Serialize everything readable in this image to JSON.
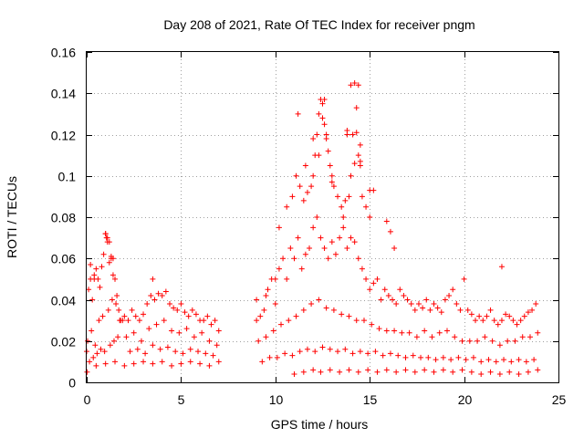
{
  "chart_data": {
    "type": "scatter",
    "title": "Day 208 of 2021, Rate Of TEC Index for receiver pngm",
    "xlabel": "GPS time / hours",
    "ylabel": "ROTI / TECUs",
    "xlim": [
      0,
      25
    ],
    "ylim": [
      0,
      0.16
    ],
    "grid": true,
    "marker": "+",
    "color": "#ff0000",
    "xticks": [
      {
        "value": 0,
        "label": "0"
      },
      {
        "value": 5,
        "label": "5"
      },
      {
        "value": 10,
        "label": "10"
      },
      {
        "value": 15,
        "label": "15"
      },
      {
        "value": 20,
        "label": "20"
      },
      {
        "value": 25,
        "label": "25"
      }
    ],
    "yticks": [
      {
        "value": 0,
        "label": "0"
      },
      {
        "value": 0.02,
        "label": "0.02"
      },
      {
        "value": 0.04,
        "label": "0.04"
      },
      {
        "value": 0.06,
        "label": "0.06"
      },
      {
        "value": 0.08,
        "label": "0.08"
      },
      {
        "value": 0.1,
        "label": "0.1"
      },
      {
        "value": 0.12,
        "label": "0.12"
      },
      {
        "value": 0.14,
        "label": "0.14"
      },
      {
        "value": 0.16,
        "label": "0.16"
      }
    ],
    "series": [
      {
        "name": "ROTI",
        "x": [
          0.0,
          0.1,
          0.2,
          0.3,
          0.4,
          0.5,
          0.6,
          0.7,
          0.8,
          0.9,
          1.0,
          1.05,
          1.1,
          1.2,
          1.3,
          1.4,
          1.5,
          1.6,
          1.7,
          1.8,
          1.9,
          2.0,
          2.2,
          2.4,
          2.6,
          2.8,
          3.0,
          3.2,
          3.4,
          3.6,
          3.8,
          4.0,
          4.2,
          4.4,
          4.6,
          4.8,
          5.0,
          5.2,
          5.4,
          5.6,
          5.8,
          6.0,
          6.2,
          6.4,
          6.6,
          6.8,
          7.0,
          0.05,
          0.25,
          0.45,
          0.65,
          0.85,
          1.15,
          1.35,
          1.55,
          1.75,
          2.1,
          2.5,
          2.9,
          3.3,
          3.7,
          4.1,
          4.5,
          4.9,
          5.3,
          5.7,
          6.1,
          6.5,
          6.9,
          0.15,
          0.35,
          0.55,
          0.75,
          0.95,
          1.25,
          1.45,
          1.65,
          2.3,
          2.7,
          3.1,
          3.5,
          3.9,
          4.3,
          4.7,
          5.1,
          5.5,
          5.9,
          6.3,
          6.7,
          0.02,
          0.5,
          1.0,
          1.5,
          2.0,
          2.5,
          3.0,
          3.5,
          4.0,
          4.5,
          5.0,
          5.5,
          6.0,
          6.5,
          7.0,
          1.0,
          1.1,
          1.2,
          0.4,
          1.4,
          3.5,
          1.3,
          0.2,
          9.0,
          9.2,
          9.4,
          9.6,
          9.8,
          10.0,
          10.2,
          10.4,
          10.6,
          10.8,
          11.0,
          11.2,
          11.4,
          11.6,
          11.8,
          12.0,
          12.2,
          12.4,
          12.6,
          12.8,
          13.0,
          13.2,
          13.4,
          13.6,
          13.8,
          14.0,
          14.2,
          14.4,
          14.6,
          14.8,
          15.0,
          15.2,
          15.4,
          15.6,
          15.8,
          16.0,
          16.2,
          16.4,
          16.6,
          16.8,
          17.0,
          17.2,
          17.4,
          17.6,
          17.8,
          18.0,
          18.2,
          18.4,
          18.6,
          18.8,
          19.0,
          19.2,
          19.4,
          19.6,
          19.8,
          20.0,
          20.2,
          20.4,
          20.6,
          20.8,
          21.0,
          21.2,
          21.4,
          21.6,
          21.8,
          22.0,
          22.2,
          22.4,
          22.6,
          22.8,
          23.0,
          23.2,
          23.4,
          23.6,
          23.8,
          9.1,
          9.5,
          9.9,
          10.3,
          10.7,
          11.1,
          11.5,
          11.9,
          12.3,
          12.7,
          13.1,
          13.5,
          13.9,
          14.3,
          14.7,
          15.1,
          15.5,
          15.9,
          16.3,
          16.7,
          17.1,
          17.5,
          17.9,
          18.3,
          18.7,
          19.1,
          19.5,
          19.9,
          20.3,
          20.7,
          21.1,
          21.5,
          21.9,
          22.3,
          22.7,
          23.1,
          23.5,
          23.9,
          9.3,
          9.7,
          10.1,
          10.5,
          10.9,
          11.3,
          11.7,
          12.1,
          12.5,
          12.9,
          13.3,
          13.7,
          14.1,
          14.5,
          14.9,
          15.3,
          15.7,
          16.1,
          16.5,
          16.9,
          17.3,
          17.7,
          18.1,
          18.5,
          18.9,
          19.3,
          19.7,
          20.1,
          20.5,
          20.9,
          21.3,
          21.7,
          22.1,
          22.5,
          22.9,
          23.3,
          23.7,
          10.2,
          10.6,
          10.9,
          11.1,
          11.3,
          11.5,
          11.7,
          11.9,
          12.0,
          12.1,
          12.2,
          12.3,
          12.4,
          12.5,
          12.6,
          12.7,
          12.8,
          12.9,
          13.0,
          13.1,
          13.3,
          13.5,
          13.7,
          13.9,
          14.0,
          14.1,
          14.2,
          14.3,
          14.4,
          14.5,
          14.6,
          14.8,
          15.0,
          15.2,
          15.9,
          16.1,
          16.3,
          11.2,
          11.6,
          12.0,
          12.3,
          12.5,
          12.6,
          12.7,
          13.0,
          13.6,
          13.8,
          14.0,
          14.2,
          14.3,
          14.5,
          11.0,
          11.5,
          12.0,
          12.4,
          12.9,
          13.4,
          13.9,
          14.4,
          14.9,
          15.4,
          15.9,
          16.4,
          16.9,
          17.4,
          17.9,
          18.4,
          18.9,
          19.4,
          19.9,
          20.4,
          20.9,
          21.4,
          21.9,
          22.4,
          22.9,
          23.4,
          23.9,
          22.0,
          15.0,
          14.4,
          14.5,
          9.0,
          9.5,
          10.0,
          13.8
        ],
        "y": [
          0.015,
          0.045,
          0.05,
          0.04,
          0.052,
          0.055,
          0.05,
          0.046,
          0.056,
          0.062,
          0.072,
          0.07,
          0.068,
          0.058,
          0.06,
          0.052,
          0.05,
          0.042,
          0.035,
          0.03,
          0.03,
          0.032,
          0.03,
          0.035,
          0.032,
          0.03,
          0.033,
          0.038,
          0.042,
          0.04,
          0.043,
          0.042,
          0.044,
          0.038,
          0.036,
          0.035,
          0.038,
          0.034,
          0.032,
          0.035,
          0.033,
          0.03,
          0.03,
          0.032,
          0.028,
          0.03,
          0.025,
          0.02,
          0.025,
          0.018,
          0.03,
          0.032,
          0.035,
          0.04,
          0.038,
          0.03,
          0.022,
          0.024,
          0.02,
          0.026,
          0.028,
          0.03,
          0.025,
          0.024,
          0.026,
          0.022,
          0.024,
          0.02,
          0.018,
          0.01,
          0.012,
          0.014,
          0.016,
          0.015,
          0.018,
          0.02,
          0.022,
          0.015,
          0.016,
          0.014,
          0.018,
          0.016,
          0.017,
          0.015,
          0.014,
          0.016,
          0.015,
          0.014,
          0.013,
          0.005,
          0.008,
          0.009,
          0.01,
          0.008,
          0.009,
          0.01,
          0.009,
          0.01,
          0.008,
          0.009,
          0.01,
          0.009,
          0.008,
          0.01,
          0.072,
          0.07,
          0.068,
          0.05,
          0.06,
          0.05,
          0.061,
          0.057,
          0.03,
          0.032,
          0.035,
          0.045,
          0.05,
          0.038,
          0.055,
          0.06,
          0.05,
          0.065,
          0.06,
          0.07,
          0.055,
          0.062,
          0.065,
          0.075,
          0.08,
          0.07,
          0.065,
          0.06,
          0.068,
          0.062,
          0.07,
          0.075,
          0.065,
          0.07,
          0.068,
          0.06,
          0.055,
          0.05,
          0.045,
          0.048,
          0.05,
          0.04,
          0.045,
          0.042,
          0.04,
          0.038,
          0.045,
          0.042,
          0.04,
          0.038,
          0.035,
          0.038,
          0.036,
          0.04,
          0.035,
          0.038,
          0.036,
          0.034,
          0.04,
          0.042,
          0.045,
          0.038,
          0.035,
          0.05,
          0.035,
          0.033,
          0.03,
          0.032,
          0.03,
          0.032,
          0.035,
          0.03,
          0.028,
          0.03,
          0.033,
          0.032,
          0.03,
          0.028,
          0.03,
          0.032,
          0.034,
          0.035,
          0.038,
          0.02,
          0.022,
          0.025,
          0.028,
          0.03,
          0.032,
          0.035,
          0.038,
          0.04,
          0.036,
          0.035,
          0.033,
          0.032,
          0.03,
          0.03,
          0.028,
          0.026,
          0.025,
          0.025,
          0.024,
          0.024,
          0.022,
          0.025,
          0.022,
          0.024,
          0.025,
          0.022,
          0.02,
          0.02,
          0.02,
          0.022,
          0.02,
          0.018,
          0.02,
          0.02,
          0.022,
          0.022,
          0.024,
          0.01,
          0.012,
          0.012,
          0.014,
          0.013,
          0.015,
          0.016,
          0.015,
          0.017,
          0.016,
          0.015,
          0.016,
          0.014,
          0.015,
          0.014,
          0.015,
          0.013,
          0.014,
          0.013,
          0.012,
          0.013,
          0.012,
          0.012,
          0.011,
          0.012,
          0.011,
          0.012,
          0.011,
          0.012,
          0.01,
          0.011,
          0.01,
          0.011,
          0.01,
          0.011,
          0.01,
          0.011,
          0.075,
          0.085,
          0.09,
          0.1,
          0.095,
          0.088,
          0.092,
          0.095,
          0.1,
          0.11,
          0.12,
          0.13,
          0.137,
          0.135,
          0.125,
          0.118,
          0.112,
          0.105,
          0.1,
          0.095,
          0.09,
          0.085,
          0.088,
          0.09,
          0.1,
          0.12,
          0.145,
          0.133,
          0.11,
          0.105,
          0.09,
          0.085,
          0.08,
          0.093,
          0.078,
          0.073,
          0.065,
          0.13,
          0.105,
          0.118,
          0.11,
          0.128,
          0.137,
          0.12,
          0.097,
          0.08,
          0.12,
          0.144,
          0.106,
          0.121,
          0.115,
          0.004,
          0.005,
          0.006,
          0.005,
          0.006,
          0.005,
          0.006,
          0.005,
          0.006,
          0.005,
          0.006,
          0.005,
          0.006,
          0.005,
          0.006,
          0.005,
          0.006,
          0.005,
          0.006,
          0.005,
          0.004,
          0.005,
          0.004,
          0.005,
          0.004,
          0.005,
          0.006,
          0.056,
          0.093,
          0.144,
          0.107,
          0.04,
          0.042,
          0.05,
          0.122
        ]
      }
    ]
  }
}
